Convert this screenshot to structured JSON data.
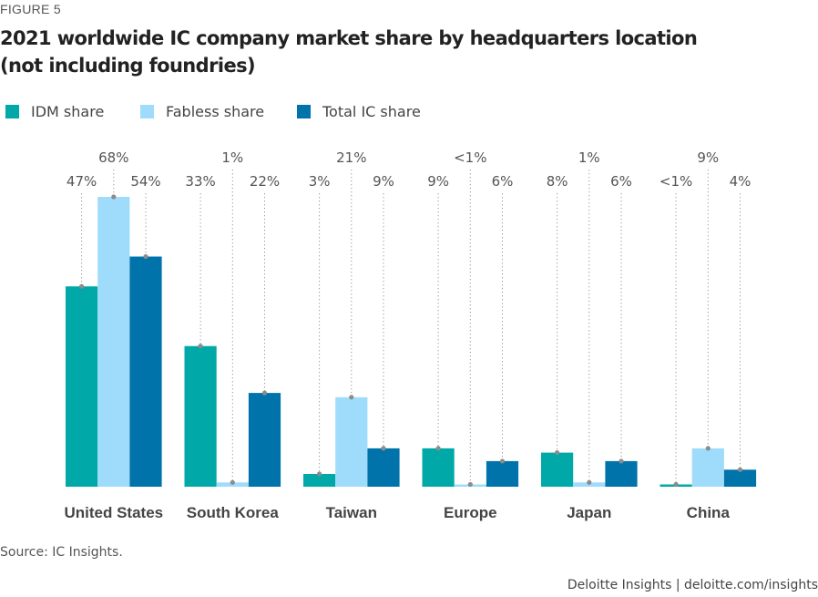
{
  "figure_label": "FIGURE 5",
  "title_line1": "2021 worldwide IC company market share by headquarters location",
  "title_line2": "(not including foundries)",
  "source": "Source: IC Insights.",
  "credit": "Deloitte Insights | deloitte.com/insights",
  "colors": {
    "idm": "#00a8a7",
    "fabless": "#9fdcfc",
    "total": "#0073aa",
    "dot": "#8c8c8c",
    "label": "#555555",
    "axis_label": "#444444"
  },
  "chart_data": {
    "type": "bar",
    "categories": [
      "United States",
      "South Korea",
      "Taiwan",
      "Europe",
      "Japan",
      "China"
    ],
    "series": [
      {
        "name": "IDM share",
        "values": [
          47,
          33,
          3,
          9,
          8,
          0.5
        ],
        "labels": [
          "47%",
          "33%",
          "3%",
          "9%",
          "8%",
          "<1%"
        ]
      },
      {
        "name": "Fabless share",
        "values": [
          68,
          1,
          21,
          0.5,
          1,
          9
        ],
        "labels": [
          "68%",
          "1%",
          "21%",
          "<1%",
          "1%",
          "9%"
        ]
      },
      {
        "name": "Total IC share",
        "values": [
          54,
          22,
          9,
          6,
          6,
          4
        ],
        "labels": [
          "54%",
          "22%",
          "9%",
          "6%",
          "6%",
          "4%"
        ]
      }
    ],
    "ylim": [
      0,
      68
    ],
    "legend_position": "top-left",
    "grid": false
  }
}
